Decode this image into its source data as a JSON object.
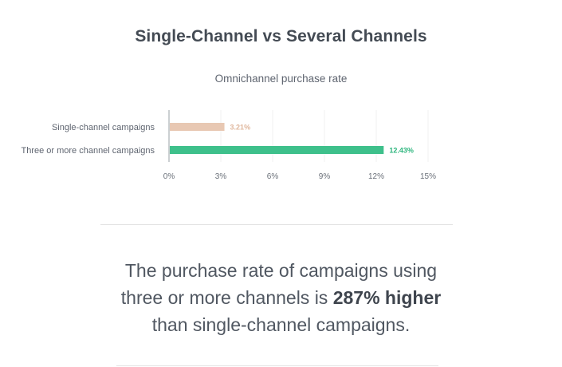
{
  "title": "Single-Channel vs Several Channels",
  "chart_data": {
    "type": "bar",
    "orientation": "horizontal",
    "title": "Omnichannel purchase rate",
    "categories": [
      "Single-channel campaigns",
      "Three or more channel campaigns"
    ],
    "values": [
      3.21,
      12.43
    ],
    "data_labels": [
      "3.21%",
      "12.43%"
    ],
    "colors": [
      "#e8c8b3",
      "#3ec08b"
    ],
    "label_colors": [
      "#e0b89e",
      "#2eb67e"
    ],
    "xlim": [
      0,
      15
    ],
    "xticks": [
      0,
      3,
      6,
      9,
      12,
      15
    ],
    "xtick_labels": [
      "0%",
      "3%",
      "6%",
      "9%",
      "12%",
      "15%"
    ],
    "xlabel": "",
    "ylabel": "",
    "grid": true
  },
  "statement": {
    "line1": "The purchase rate of campaigns using",
    "line2_prefix": "three or more channels is ",
    "line2_bold": "287% higher",
    "line3": "than single-channel campaigns."
  }
}
